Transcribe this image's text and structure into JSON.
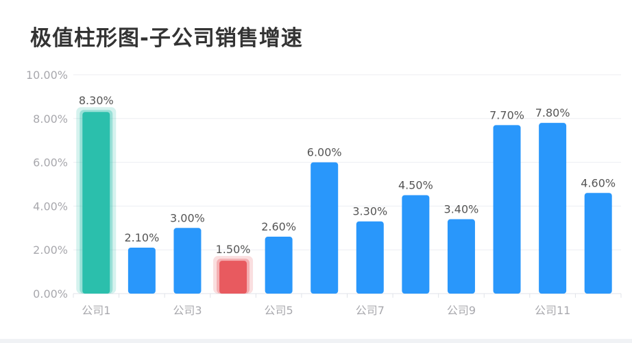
{
  "chart_data": {
    "type": "bar",
    "title": "极值柱形图-子公司销售增速",
    "x_tick_labels": [
      "公司1",
      "",
      "公司3",
      "",
      "公司5",
      "",
      "公司7",
      "",
      "公司9",
      "",
      "公司11",
      ""
    ],
    "values": [
      8.3,
      2.1,
      3.0,
      1.5,
      2.6,
      6.0,
      3.3,
      4.5,
      3.4,
      7.7,
      7.8,
      4.6
    ],
    "data_labels": [
      "8.30%",
      "2.10%",
      "3.00%",
      "1.50%",
      "2.60%",
      "6.00%",
      "3.30%",
      "4.50%",
      "3.40%",
      "7.70%",
      "7.80%",
      "4.60%"
    ],
    "ylim": [
      0,
      10
    ],
    "y_ticks": [
      "0.00%",
      "2.00%",
      "4.00%",
      "6.00%",
      "8.00%",
      "10.00%"
    ],
    "grid": true,
    "colors": {
      "default": "#2997fb",
      "max": "#2bbfac",
      "min": "#e85a5f"
    },
    "highlight": {
      "max_index": 0,
      "min_index": 3
    }
  }
}
